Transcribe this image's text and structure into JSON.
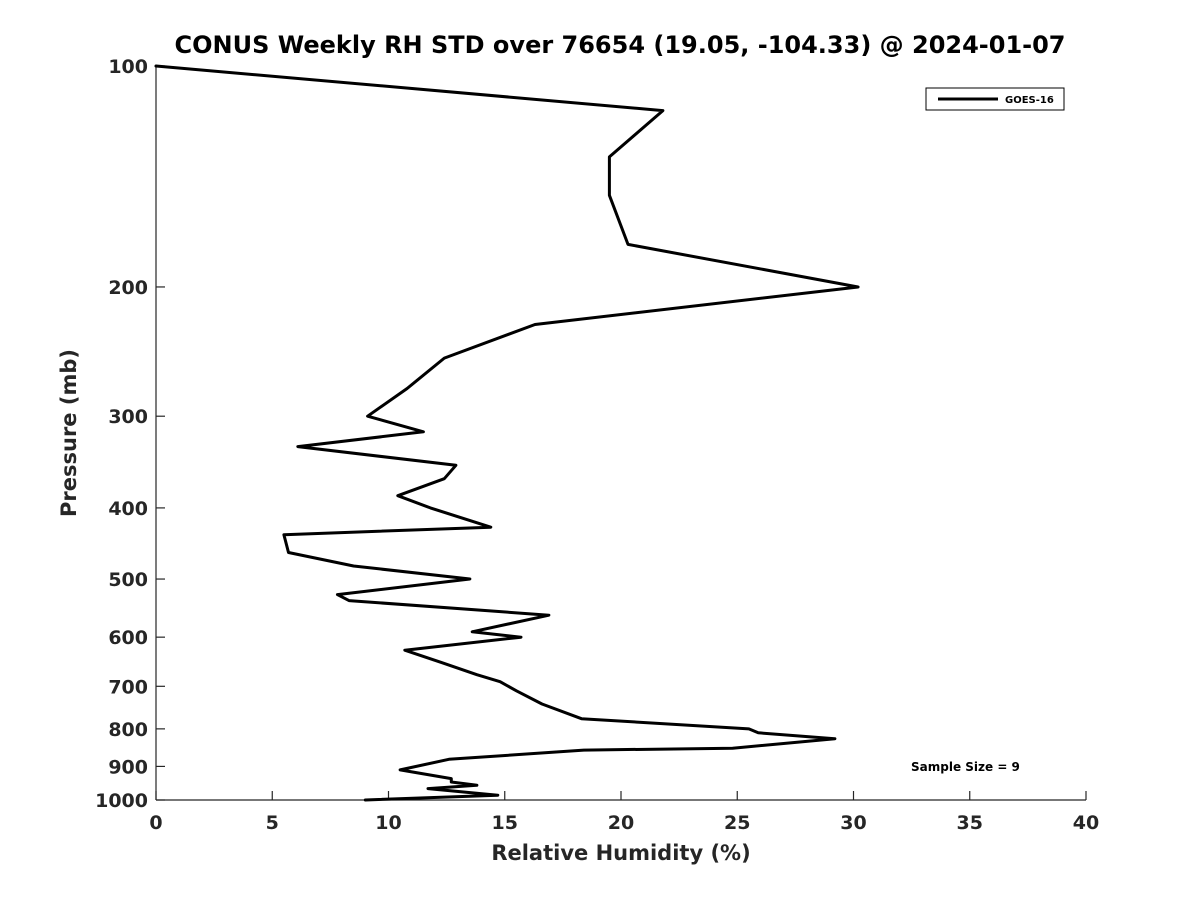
{
  "chart_data": {
    "type": "line",
    "title": "CONUS Weekly RH STD over 76654 (19.05, -104.33) @ 2024-01-07",
    "xlabel": "Relative Humidity (%)",
    "ylabel": "Pressure (mb)",
    "xlim": [
      0,
      40
    ],
    "ylim": [
      1000,
      100
    ],
    "y_scale": "log",
    "x_ticks": [
      0,
      5,
      10,
      15,
      20,
      25,
      30,
      35,
      40
    ],
    "y_ticks": [
      100,
      200,
      300,
      400,
      500,
      600,
      700,
      800,
      900,
      1000
    ],
    "legend": {
      "position": "top-right",
      "entries": [
        "GOES-16"
      ]
    },
    "annotation": "Sample Size = 9",
    "grid": false,
    "series": [
      {
        "name": "GOES-16",
        "color": "#000000",
        "rh": [
          0.0,
          21.8,
          19.5,
          19.5,
          19.5,
          20.3,
          30.2,
          16.3,
          12.4,
          10.8,
          9.1,
          11.5,
          6.1,
          12.9,
          12.4,
          10.4,
          11.8,
          14.4,
          5.5,
          5.7,
          8.5,
          13.5,
          7.8,
          8.3,
          16.9,
          13.6,
          15.7,
          10.7,
          12.3,
          13.8,
          14.8,
          15.5,
          16.6,
          18.3,
          25.5,
          25.9,
          29.2,
          24.8,
          18.4,
          12.6,
          10.5,
          12.7,
          12.7,
          13.8,
          11.7,
          14.7,
          9.0
        ],
        "pressure": [
          100,
          115,
          133,
          145,
          150,
          175,
          200,
          225,
          250,
          275,
          300,
          315,
          330,
          350,
          365,
          385,
          400,
          425,
          435,
          460,
          480,
          500,
          525,
          535,
          560,
          590,
          600,
          625,
          650,
          675,
          690,
          710,
          740,
          775,
          800,
          810,
          825,
          850,
          855,
          880,
          910,
          935,
          945,
          955,
          965,
          985,
          1000
        ]
      }
    ]
  }
}
